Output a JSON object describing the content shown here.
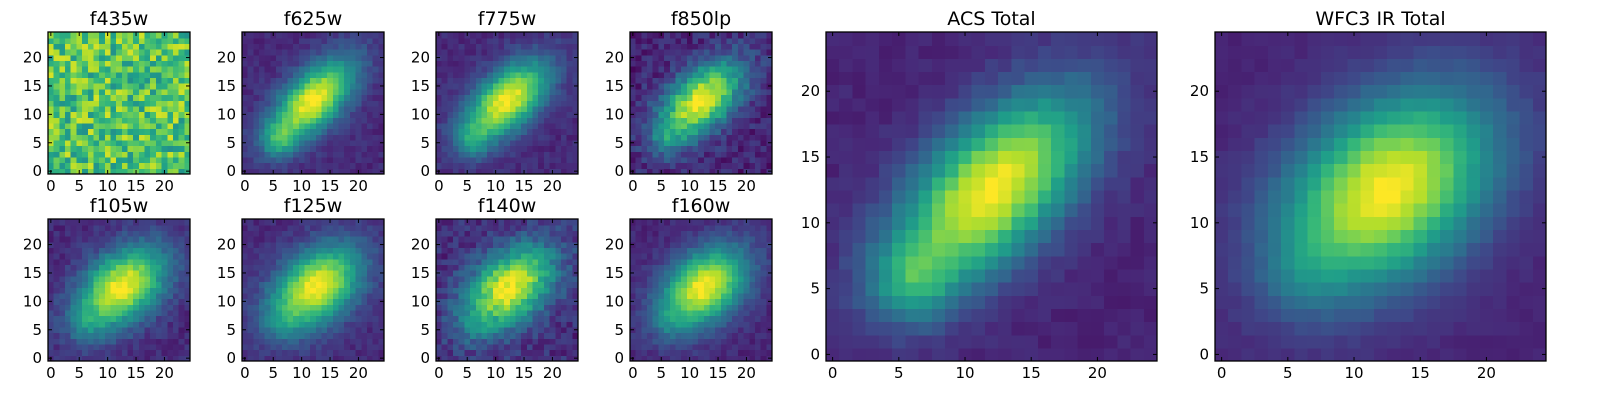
{
  "figure": {
    "colormap": "viridis",
    "colors": {
      "viridis_stops": [
        "#440154",
        "#482878",
        "#3e4989",
        "#31688e",
        "#26828e",
        "#1f9e89",
        "#35b779",
        "#6ece58",
        "#b5de2b",
        "#fde725"
      ],
      "axes": "#000000",
      "background": "#ffffff"
    }
  },
  "chart_data": [
    {
      "id": "f435w",
      "title": "f435w",
      "type": "heatmap",
      "grid_size": 25,
      "xlim": [
        -0.5,
        24.5
      ],
      "ylim": [
        -0.5,
        24.5
      ],
      "xticks": [
        0,
        5,
        10,
        15,
        20
      ],
      "yticks": [
        0,
        5,
        10,
        15,
        20
      ],
      "xticklabels": [
        "0",
        "5",
        "10",
        "15",
        "20"
      ],
      "yticklabels": [
        "0",
        "5",
        "10",
        "15",
        "20"
      ],
      "profile": {
        "kind": "noise",
        "base": 0.72,
        "noise": 0.22,
        "seed": 11
      }
    },
    {
      "id": "f625w",
      "title": "f625w",
      "type": "heatmap",
      "grid_size": 25,
      "xlim": [
        -0.5,
        24.5
      ],
      "ylim": [
        -0.5,
        24.5
      ],
      "xticks": [
        0,
        5,
        10,
        15,
        20
      ],
      "yticks": [
        0,
        5,
        10,
        15,
        20
      ],
      "xticklabels": [
        "0",
        "5",
        "10",
        "15",
        "20"
      ],
      "yticklabels": [
        "0",
        "5",
        "10",
        "15",
        "20"
      ],
      "profile": {
        "kind": "galaxy",
        "center": [
          12,
          12.5
        ],
        "sigma_major": 6.5,
        "sigma_minor": 3.2,
        "angle_deg": 45,
        "tail": [
          6,
          5.5
        ],
        "tail_amp": 0.35,
        "floor": 0.12,
        "noise": 0.05,
        "seed": 21
      }
    },
    {
      "id": "f775w",
      "title": "f775w",
      "type": "heatmap",
      "grid_size": 25,
      "xlim": [
        -0.5,
        24.5
      ],
      "ylim": [
        -0.5,
        24.5
      ],
      "xticks": [
        0,
        5,
        10,
        15,
        20
      ],
      "yticks": [
        0,
        5,
        10,
        15,
        20
      ],
      "xticklabels": [
        "0",
        "5",
        "10",
        "15",
        "20"
      ],
      "yticklabels": [
        "0",
        "5",
        "10",
        "15",
        "20"
      ],
      "profile": {
        "kind": "galaxy",
        "center": [
          12,
          12.5
        ],
        "sigma_major": 6.2,
        "sigma_minor": 3.3,
        "angle_deg": 42,
        "tail": [
          6,
          5.5
        ],
        "tail_amp": 0.28,
        "floor": 0.12,
        "noise": 0.05,
        "seed": 31
      }
    },
    {
      "id": "f850lp",
      "title": "f850lp",
      "type": "heatmap",
      "grid_size": 25,
      "xlim": [
        -0.5,
        24.5
      ],
      "ylim": [
        -0.5,
        24.5
      ],
      "xticks": [
        0,
        5,
        10,
        15,
        20
      ],
      "yticks": [
        0,
        5,
        10,
        15,
        20
      ],
      "xticklabels": [
        "0",
        "5",
        "10",
        "15",
        "20"
      ],
      "yticklabels": [
        "0",
        "5",
        "10",
        "15",
        "20"
      ],
      "profile": {
        "kind": "galaxy",
        "center": [
          12,
          12.5
        ],
        "sigma_major": 6.0,
        "sigma_minor": 3.4,
        "angle_deg": 42,
        "tail": [
          6,
          5.5
        ],
        "tail_amp": 0.22,
        "floor": 0.1,
        "noise": 0.09,
        "seed": 41
      }
    },
    {
      "id": "f105w",
      "title": "f105w",
      "type": "heatmap",
      "grid_size": 25,
      "xlim": [
        -0.5,
        24.5
      ],
      "ylim": [
        -0.5,
        24.5
      ],
      "xticks": [
        0,
        5,
        10,
        15,
        20
      ],
      "yticks": [
        0,
        5,
        10,
        15,
        20
      ],
      "xticklabels": [
        "0",
        "5",
        "10",
        "15",
        "20"
      ],
      "yticklabels": [
        "0",
        "5",
        "10",
        "15",
        "20"
      ],
      "profile": {
        "kind": "galaxy",
        "center": [
          12.5,
          12.5
        ],
        "sigma_major": 6.2,
        "sigma_minor": 4.0,
        "angle_deg": 40,
        "tail": [
          6,
          6
        ],
        "tail_amp": 0.18,
        "floor": 0.12,
        "noise": 0.06,
        "seed": 51
      }
    },
    {
      "id": "f125w",
      "title": "f125w",
      "type": "heatmap",
      "grid_size": 25,
      "xlim": [
        -0.5,
        24.5
      ],
      "ylim": [
        -0.5,
        24.5
      ],
      "xticks": [
        0,
        5,
        10,
        15,
        20
      ],
      "yticks": [
        0,
        5,
        10,
        15,
        20
      ],
      "xticklabels": [
        "0",
        "5",
        "10",
        "15",
        "20"
      ],
      "yticklabels": [
        "0",
        "5",
        "10",
        "15",
        "20"
      ],
      "profile": {
        "kind": "galaxy",
        "center": [
          12.5,
          12.5
        ],
        "sigma_major": 6.3,
        "sigma_minor": 4.1,
        "angle_deg": 40,
        "tail": [
          6,
          6
        ],
        "tail_amp": 0.16,
        "floor": 0.12,
        "noise": 0.05,
        "seed": 61
      }
    },
    {
      "id": "f140w",
      "title": "f140w",
      "type": "heatmap",
      "grid_size": 25,
      "xlim": [
        -0.5,
        24.5
      ],
      "ylim": [
        -0.5,
        24.5
      ],
      "xticks": [
        0,
        5,
        10,
        15,
        20
      ],
      "yticks": [
        0,
        5,
        10,
        15,
        20
      ],
      "xticklabels": [
        "0",
        "5",
        "10",
        "15",
        "20"
      ],
      "yticklabels": [
        "0",
        "5",
        "10",
        "15",
        "20"
      ],
      "profile": {
        "kind": "galaxy",
        "center": [
          12.5,
          12.5
        ],
        "sigma_major": 6.2,
        "sigma_minor": 4.0,
        "angle_deg": 40,
        "tail": [
          6,
          6
        ],
        "tail_amp": 0.16,
        "floor": 0.13,
        "noise": 0.09,
        "seed": 71
      }
    },
    {
      "id": "f160w",
      "title": "f160w",
      "type": "heatmap",
      "grid_size": 25,
      "xlim": [
        -0.5,
        24.5
      ],
      "ylim": [
        -0.5,
        24.5
      ],
      "xticks": [
        0,
        5,
        10,
        15,
        20
      ],
      "yticks": [
        0,
        5,
        10,
        15,
        20
      ],
      "xticklabels": [
        "0",
        "5",
        "10",
        "15",
        "20"
      ],
      "yticklabels": [
        "0",
        "5",
        "10",
        "15",
        "20"
      ],
      "profile": {
        "kind": "galaxy",
        "center": [
          12.5,
          12.5
        ],
        "sigma_major": 6.0,
        "sigma_minor": 4.0,
        "angle_deg": 40,
        "tail": [
          6,
          6
        ],
        "tail_amp": 0.14,
        "floor": 0.11,
        "noise": 0.05,
        "seed": 81
      }
    },
    {
      "id": "acs_total",
      "title": "ACS Total",
      "type": "heatmap",
      "grid_size": 25,
      "xlim": [
        -0.5,
        24.5
      ],
      "ylim": [
        -0.5,
        24.5
      ],
      "xticks": [
        0,
        5,
        10,
        15,
        20
      ],
      "yticks": [
        0,
        5,
        10,
        15,
        20
      ],
      "xticklabels": [
        "0",
        "5",
        "10",
        "15",
        "20"
      ],
      "yticklabels": [
        "0",
        "5",
        "10",
        "15",
        "20"
      ],
      "profile": {
        "kind": "galaxy",
        "center": [
          12,
          12.5
        ],
        "sigma_major": 6.5,
        "sigma_minor": 3.3,
        "angle_deg": 45,
        "tail": [
          6,
          5.5
        ],
        "tail_amp": 0.32,
        "floor": 0.1,
        "noise": 0.03,
        "seed": 91
      }
    },
    {
      "id": "wfc3_ir_total",
      "title": "WFC3 IR Total",
      "type": "heatmap",
      "grid_size": 25,
      "xlim": [
        -0.5,
        24.5
      ],
      "ylim": [
        -0.5,
        24.5
      ],
      "xticks": [
        0,
        5,
        10,
        15,
        20
      ],
      "yticks": [
        0,
        5,
        10,
        15,
        20
      ],
      "xticklabels": [
        "0",
        "5",
        "10",
        "15",
        "20"
      ],
      "yticklabels": [
        "0",
        "5",
        "10",
        "15",
        "20"
      ],
      "profile": {
        "kind": "galaxy",
        "center": [
          12.5,
          12.5
        ],
        "sigma_major": 6.3,
        "sigma_minor": 4.3,
        "angle_deg": 40,
        "tail": [
          6,
          6
        ],
        "tail_amp": 0.12,
        "floor": 0.1,
        "noise": 0.02,
        "seed": 101
      }
    }
  ]
}
